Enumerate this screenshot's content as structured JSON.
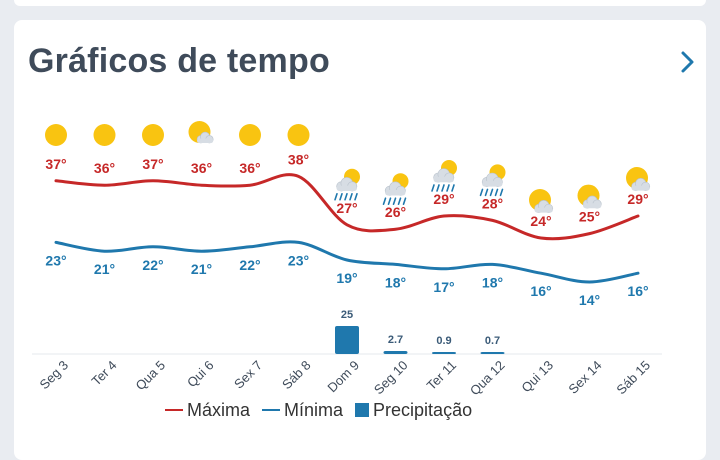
{
  "page": {
    "title": "Gráficos de tempo",
    "next_icon": "chevron-right-icon"
  },
  "colors": {
    "max": "#c62828",
    "min": "#1f78ad",
    "precip": "#1f78ad",
    "sun": "#f9c411",
    "cloud": "#d7dde4",
    "chevron": "#1f78ad"
  },
  "legend": {
    "max_label": "Máxima",
    "min_label": "Mínima",
    "precip_label": "Precipitação"
  },
  "chart_data": {
    "type": "line",
    "categories": [
      "Seg 3",
      "Ter 4",
      "Qua 5",
      "Qui 6",
      "Sex 7",
      "Sáb 8",
      "Dom 9",
      "Seg 10",
      "Ter 11",
      "Qua 12",
      "Qui 13",
      "Sex 14",
      "Sáb 15"
    ],
    "icons": [
      "sun",
      "sun",
      "sun",
      "sun-cloud",
      "sun",
      "sun",
      "rain-sun",
      "rain-sun",
      "rain-sun",
      "rain-sun",
      "partly-cloudy",
      "partly-cloudy",
      "partly-cloudy"
    ],
    "series": [
      {
        "name": "Máxima",
        "values": [
          37,
          36,
          37,
          36,
          36,
          38,
          27,
          26,
          29,
          28,
          24,
          25,
          29
        ],
        "labels": [
          "37°",
          "36°",
          "37°",
          "36°",
          "36°",
          "38°",
          "27°",
          "26°",
          "29°",
          "28°",
          "24°",
          "25°",
          "29°"
        ]
      },
      {
        "name": "Mínima",
        "values": [
          23,
          21,
          22,
          21,
          22,
          23,
          19,
          18,
          17,
          18,
          16,
          14,
          16
        ],
        "labels": [
          "23°",
          "21°",
          "22°",
          "21°",
          "22°",
          "23°",
          "19°",
          "18°",
          "17°",
          "18°",
          "16°",
          "14°",
          "16°"
        ]
      },
      {
        "name": "Precipitação",
        "values": [
          0,
          0,
          0,
          0,
          0,
          0,
          25,
          2.7,
          0.9,
          0.7,
          0,
          0,
          0
        ],
        "labels": [
          "",
          "",
          "",
          "",
          "",
          "",
          "25",
          "2.7",
          "0.9",
          "0.7",
          "",
          "",
          ""
        ]
      }
    ],
    "grid": false,
    "legend_position": "bottom"
  }
}
